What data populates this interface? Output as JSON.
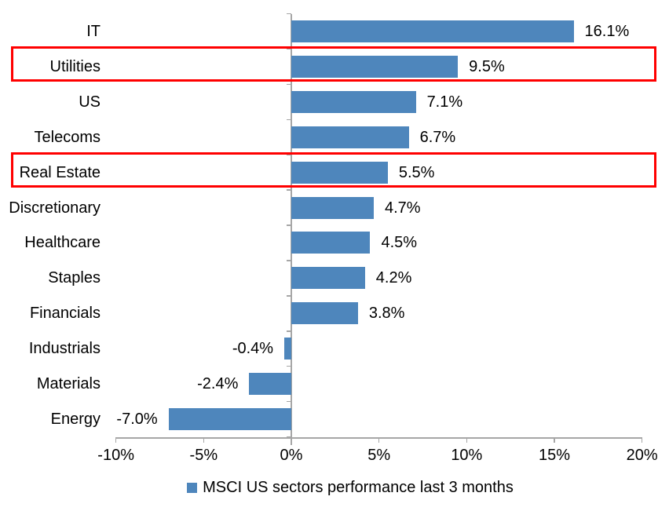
{
  "chart_data": {
    "type": "bar",
    "orientation": "horizontal",
    "title": "",
    "categories": [
      "IT",
      "Utilities",
      "US",
      "Telecoms",
      "Real Estate",
      "Discretionary",
      "Healthcare",
      "Staples",
      "Financials",
      "Industrials",
      "Materials",
      "Energy"
    ],
    "values": [
      16.1,
      9.5,
      7.1,
      6.7,
      5.5,
      4.7,
      4.5,
      4.2,
      3.8,
      -0.4,
      -2.4,
      -7.0
    ],
    "value_labels": [
      "16.1%",
      "9.5%",
      "7.1%",
      "6.7%",
      "5.5%",
      "4.7%",
      "4.5%",
      "4.2%",
      "3.8%",
      "-0.4%",
      "-2.4%",
      "-7.0%"
    ],
    "highlighted_categories": [
      "Utilities",
      "Real Estate"
    ],
    "x_ticks": [
      -10,
      -5,
      0,
      5,
      10,
      15,
      20
    ],
    "x_tick_labels": [
      "-10%",
      "-5%",
      "0%",
      "5%",
      "10%",
      "15%",
      "20%"
    ],
    "xlim": [
      -10,
      20
    ],
    "grid": false,
    "bar_color": "#4E86BC",
    "highlight_color": "#FF0000",
    "axis_color": "#A6A6A6",
    "legend": {
      "position": "bottom",
      "marker_color": "#4E86BC",
      "label": "MSCI US sectors performance last 3 months"
    }
  }
}
